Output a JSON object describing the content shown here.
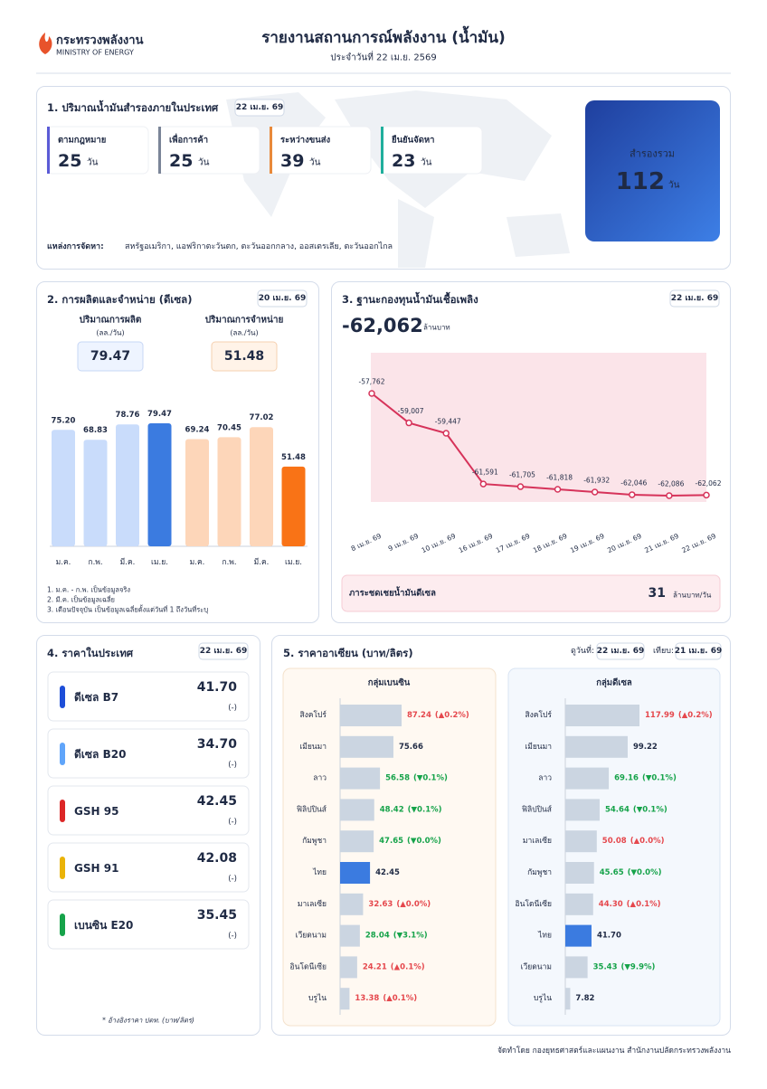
{
  "header": {
    "logo_th": "กระทรวงพลังงาน",
    "logo_en": "MINISTRY OF ENERGY",
    "title": "รายงานสถานการณ์พลังงาน (น้ำมัน)",
    "subtitle": "ประจำวันที่ 22 เม.ย. 2569"
  },
  "reserves": {
    "title": "1. ปริมาณน้ำมันสำรองภายในประเทศ",
    "date": "22 เม.ย. 69",
    "unit": "วัน",
    "items": [
      {
        "label": "ตามกฎหมาย",
        "value": 25,
        "color": "#5b5bd6"
      },
      {
        "label": "เพื่อการค้า",
        "value": 25,
        "color": "#7b8598"
      },
      {
        "label": "ระหว่างขนส่ง",
        "value": 39,
        "color": "#e8893a"
      },
      {
        "label": "ยืนยันจัดหา",
        "value": 23,
        "color": "#1fae9c"
      }
    ],
    "total": {
      "label": "สำรองรวม",
      "value": 112
    },
    "sources_label": "แหล่งการจัดหา:",
    "sources": "สหรัฐอเมริกา, แอฟริกาตะวันตก, ตะวันออกกลาง, ออสเตรเลีย, ตะวันออกไกล"
  },
  "production": {
    "title": "2. การผลิตและจำหน่าย (ดีเซล)",
    "date": "20 เม.ย. 69",
    "unit": "(ลล./วัน)",
    "output": {
      "label": "ปริมาณการผลิต",
      "value": 79.47
    },
    "sales": {
      "label": "ปริมาณการจำหน่าย",
      "value": 51.48
    },
    "chart": {
      "type": "bar",
      "categories": [
        "ม.ค.",
        "ก.พ.",
        "มี.ค.",
        "เม.ย."
      ],
      "series": [
        {
          "values": [
            75.2,
            68.83,
            78.76,
            79.47
          ],
          "value_labels": [
            "75.20",
            "68.83",
            "78.76",
            "79.47"
          ],
          "colors": [
            "#c9dcfb",
            "#c9dcfb",
            "#c9dcfb",
            "#3b7be0"
          ]
        },
        {
          "values": [
            69.24,
            70.45,
            77.02,
            51.48
          ],
          "value_labels": [
            "69.24",
            "70.45",
            "77.02",
            "51.48"
          ],
          "colors": [
            "#fdd6b9",
            "#fdd6b9",
            "#fdd6b9",
            "#f97316"
          ]
        }
      ]
    },
    "notes": [
      "1. ม.ค. - ก.พ. เป็นข้อมูลจริง",
      "2. มี.ค. เป็นข้อมูลเฉลี่ย",
      "3. เดือนปัจจุบัน เป็นข้อมูลเฉลี่ยตั้งแต่วันที่ 1 ถึงวันที่ระบุ"
    ]
  },
  "fund": {
    "title": "3. ฐานะกองทุนน้ำมันเชื้อเพลิง",
    "date": "22 เม.ย. 69",
    "balance": {
      "value": -62062,
      "label": "-62,062"
    },
    "unit": "ล้านบาท",
    "chart": {
      "type": "line",
      "color": "#d6335a",
      "x": [
        "8 เม.ย. 69",
        "9 เม.ย. 69",
        "10 เม.ย. 69",
        "16 เม.ย. 69",
        "17 เม.ย. 69",
        "18 เม.ย. 69",
        "19 เม.ย. 69",
        "20 เม.ย. 69",
        "21 เม.ย. 69",
        "22 เม.ย. 69"
      ],
      "values": [
        -57762,
        -59007,
        -59447,
        -61591,
        -61705,
        -61818,
        -61932,
        -62046,
        -62086,
        -62062
      ],
      "value_labels": [
        "-57,762",
        "-59,007",
        "-59,447",
        "-61,591",
        "-61,705",
        "-61,818",
        "-61,932",
        "-62,046",
        "-62,086",
        "-62,062"
      ]
    },
    "subsidy": {
      "label": "ภาระชดเชยน้ำมันดีเซล",
      "value": 31,
      "unit": "ล้านบาท/วัน"
    }
  },
  "domestic": {
    "title": "4. ราคาในประเทศ",
    "date": "22 เม.ย. 69",
    "items": [
      {
        "name": "ดีเซล B7",
        "price": {
          "value": 41.7,
          "label": "41.70"
        },
        "change": "(-)",
        "color": "#1d4ed8"
      },
      {
        "name": "ดีเซล B20",
        "price": {
          "value": 34.7,
          "label": "34.70"
        },
        "change": "(-)",
        "color": "#60a5fa"
      },
      {
        "name": "GSH 95",
        "price": 42.45,
        "change": "(-)",
        "color": "#dc2626"
      },
      {
        "name": "GSH 91",
        "price": 42.08,
        "change": "(-)",
        "color": "#eab308"
      },
      {
        "name": "เบนซิน E20",
        "price": 35.45,
        "change": "(-)",
        "color": "#16a34a"
      }
    ],
    "note": "* อ้างอิงราคา ปตท. (บาท/ลิตร)"
  },
  "asean": {
    "title": "5. ราคาอาเซียน (บาท/ลิตร)",
    "view_label": "ดูวันที่:",
    "view_date": "22 เม.ย. 69",
    "compare_label": "เทียบ:",
    "compare_date": "21 เม.ย. 69",
    "groups": [
      {
        "title": "กลุ่มเบนซิน",
        "type": "bar",
        "orientation": "horizontal",
        "categories": [
          "สิงคโปร์",
          "เมียนมา",
          "ลาว",
          "ฟิลิปปินส์",
          "กัมพูชา",
          "ไทย",
          "มาเลเซีย",
          "เวียดนาม",
          "อินโดนีเซีย",
          "บรูไน"
        ],
        "values": [
          87.24,
          75.66,
          56.58,
          48.42,
          47.65,
          42.45,
          32.63,
          28.04,
          24.21,
          13.38
        ],
        "changes": [
          "(▲0.2%)",
          null,
          "(▼0.1%)",
          "(▼0.1%)",
          "(▼0.0%)",
          null,
          "(▲0.0%)",
          "(▼3.1%)",
          "(▲0.1%)",
          "(▲0.1%)"
        ],
        "colors": [
          "#cbd5e1",
          "#cbd5e1",
          "#cbd5e1",
          "#cbd5e1",
          "#cbd5e1",
          "#3b7be0",
          "#cbd5e1",
          "#cbd5e1",
          "#cbd5e1",
          "#cbd5e1"
        ],
        "label_colors": [
          "#e5484d",
          "#1f2a44",
          "#16a34a",
          "#16a34a",
          "#16a34a",
          "#1f2a44",
          "#e5484d",
          "#16a34a",
          "#e5484d",
          "#e5484d"
        ]
      },
      {
        "title": "กลุ่มดีเซล",
        "type": "bar",
        "orientation": "horizontal",
        "categories": [
          "สิงคโปร์",
          "เมียนมา",
          "ลาว",
          "ฟิลิปปินส์",
          "มาเลเซีย",
          "กัมพูชา",
          "อินโดนีเซีย",
          "ไทย",
          "เวียดนาม",
          "บรูไน"
        ],
        "values": [
          117.99,
          99.22,
          69.16,
          54.64,
          50.08,
          45.65,
          44.3,
          41.7,
          35.43,
          7.82
        ],
        "value_labels": [
          "117.99",
          "99.22",
          "69.16",
          "54.64",
          "50.08",
          "45.65",
          "44.30",
          "41.70",
          "35.43",
          "7.82"
        ],
        "changes": [
          "(▲0.2%)",
          null,
          "(▼0.1%)",
          "(▼0.1%)",
          "(▲0.0%)",
          "(▼0.0%)",
          "(▲0.1%)",
          null,
          "(▼9.9%)",
          null
        ],
        "colors": [
          "#cbd5e1",
          "#cbd5e1",
          "#cbd5e1",
          "#cbd5e1",
          "#cbd5e1",
          "#cbd5e1",
          "#cbd5e1",
          "#3b7be0",
          "#cbd5e1",
          "#cbd5e1"
        ],
        "label_colors": [
          "#e5484d",
          "#1f2a44",
          "#16a34a",
          "#16a34a",
          "#e5484d",
          "#16a34a",
          "#e5484d",
          "#1f2a44",
          "#16a34a",
          "#1f2a44"
        ]
      }
    ]
  },
  "footer": "จัดทำโดย กองยุทธศาสตร์และแผนงาน สำนักงานปลัดกระทรวงพลังงาน"
}
